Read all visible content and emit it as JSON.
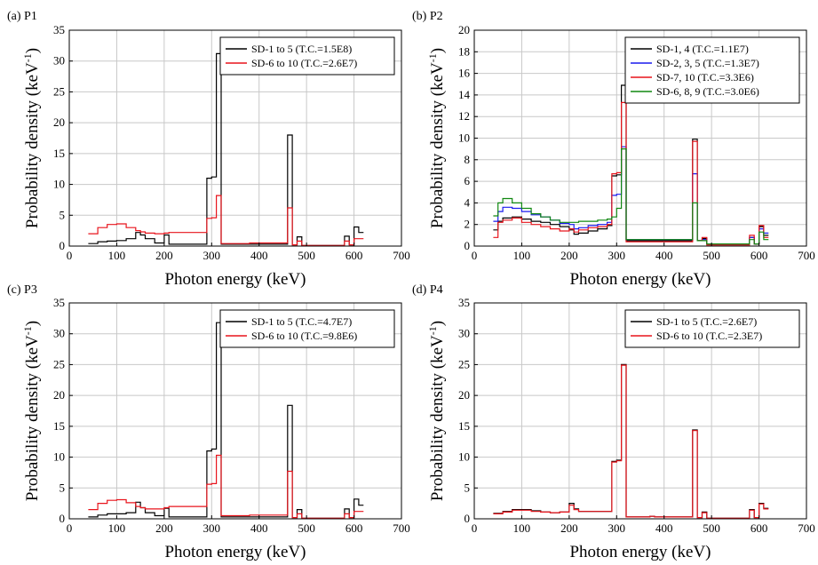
{
  "chart_data": [
    {
      "type": "line",
      "panel_label": "(a) P1",
      "xlabel": "Photon energy (keV)",
      "ylabel": "Probability density (keV",
      "ylabel_sup": "-1",
      "ylabel_end": ")",
      "xlim": [
        0,
        700
      ],
      "ylim": [
        0,
        35
      ],
      "xticks": [
        0,
        100,
        200,
        300,
        400,
        500,
        600,
        700
      ],
      "yticks": [
        0,
        5,
        10,
        15,
        20,
        25,
        30,
        35
      ],
      "grid": true,
      "legend_position": "top-right",
      "x": [
        40,
        60,
        80,
        100,
        120,
        140,
        150,
        160,
        180,
        200,
        210,
        290,
        300,
        310,
        320,
        370,
        380,
        460,
        470,
        480,
        490,
        580,
        590,
        600,
        610,
        620
      ],
      "series": [
        {
          "name": "SD-1 to 5  (T.C.=1.5E8)",
          "color": "#000000",
          "values": [
            0.4,
            0.7,
            0.8,
            0.9,
            1.2,
            2.2,
            1.8,
            1.2,
            0.5,
            1.8,
            0.3,
            11.0,
            11.2,
            31.2,
            0.3,
            0.3,
            0.3,
            18.0,
            0.2,
            1.5,
            0.1,
            1.6,
            0.2,
            3.1,
            2.2,
            2.2
          ]
        },
        {
          "name": "SD-6 to 10  (T.C.=2.6E7)",
          "color": "#e8141c",
          "values": [
            2.0,
            3.0,
            3.5,
            3.6,
            3.0,
            2.5,
            2.3,
            2.1,
            2.0,
            2.1,
            2.2,
            4.5,
            4.6,
            8.2,
            0.4,
            0.4,
            0.5,
            6.2,
            0.2,
            0.8,
            0.1,
            0.8,
            0.2,
            1.2,
            1.2,
            1.2
          ]
        }
      ]
    },
    {
      "type": "line",
      "panel_label": "(b) P2",
      "xlabel": "Photon energy (keV)",
      "ylabel": "Probability density (keV",
      "ylabel_sup": "-1",
      "ylabel_end": ")",
      "xlim": [
        0,
        700
      ],
      "ylim": [
        0,
        20
      ],
      "xticks": [
        0,
        100,
        200,
        300,
        400,
        500,
        600,
        700
      ],
      "yticks": [
        0,
        2,
        4,
        6,
        8,
        10,
        12,
        14,
        16,
        18,
        20
      ],
      "grid": true,
      "legend_position": "top-right",
      "x": [
        40,
        50,
        60,
        80,
        100,
        120,
        140,
        160,
        180,
        200,
        210,
        220,
        240,
        260,
        280,
        290,
        300,
        310,
        320,
        370,
        380,
        460,
        470,
        480,
        490,
        580,
        590,
        600,
        610,
        620
      ],
      "series": [
        {
          "name": "SD-1, 4  (T.C.=1.1E7)",
          "color": "#000000",
          "values": [
            1.5,
            2.3,
            2.6,
            2.7,
            2.5,
            2.3,
            2.2,
            2.0,
            1.8,
            1.5,
            1.1,
            1.2,
            1.4,
            1.6,
            1.9,
            6.5,
            6.6,
            14.9,
            0.5,
            0.5,
            0.5,
            9.9,
            0.5,
            0.7,
            0.2,
            0.8,
            0.2,
            1.8,
            1.0,
            1.0
          ]
        },
        {
          "name": "SD-2, 3, 5  (T.C.=1.3E7)",
          "color": "#1a1aee",
          "values": [
            2.3,
            3.2,
            3.6,
            3.5,
            3.2,
            2.9,
            2.7,
            2.4,
            2.1,
            2.0,
            1.6,
            1.7,
            1.9,
            2.0,
            2.2,
            4.7,
            4.8,
            9.2,
            0.6,
            0.6,
            0.6,
            6.7,
            0.5,
            0.6,
            0.2,
            0.8,
            0.2,
            1.6,
            1.2,
            1.2
          ]
        },
        {
          "name": "SD-7, 10  (T.C.=3.3E6)",
          "color": "#e8141c",
          "values": [
            0.8,
            2.2,
            2.4,
            2.6,
            2.2,
            2.0,
            1.8,
            1.6,
            1.4,
            1.6,
            1.3,
            1.5,
            1.7,
            1.8,
            2.0,
            6.7,
            6.8,
            13.3,
            0.4,
            0.4,
            0.4,
            9.7,
            0.5,
            0.8,
            0.1,
            1.0,
            0.2,
            1.9,
            0.8,
            0.8
          ]
        },
        {
          "name": "SD-6, 8, 9  (T.C.=3.0E6)",
          "color": "#118811",
          "values": [
            2.8,
            4.0,
            4.4,
            4.0,
            3.5,
            3.0,
            2.7,
            2.4,
            2.2,
            2.2,
            2.2,
            2.3,
            2.3,
            2.4,
            2.5,
            2.7,
            3.5,
            9.0,
            0.6,
            0.6,
            0.6,
            4.0,
            0.5,
            0.5,
            0.2,
            0.6,
            0.2,
            1.3,
            0.6,
            0.6
          ]
        }
      ]
    },
    {
      "type": "line",
      "panel_label": "(c) P3",
      "xlabel": "Photon energy (keV)",
      "ylabel": "Probability density (keV",
      "ylabel_sup": "-1",
      "ylabel_end": ")",
      "xlim": [
        0,
        700
      ],
      "ylim": [
        0,
        35
      ],
      "xticks": [
        0,
        100,
        200,
        300,
        400,
        500,
        600,
        700
      ],
      "yticks": [
        0,
        5,
        10,
        15,
        20,
        25,
        30,
        35
      ],
      "grid": true,
      "legend_position": "top-right",
      "x": [
        40,
        60,
        80,
        100,
        120,
        140,
        150,
        160,
        180,
        200,
        210,
        290,
        300,
        310,
        320,
        370,
        380,
        460,
        470,
        480,
        490,
        580,
        590,
        600,
        610,
        620
      ],
      "series": [
        {
          "name": "SD-1 to 5  (T.C.=4.7E7)",
          "color": "#000000",
          "values": [
            0.3,
            0.6,
            0.8,
            0.8,
            1.0,
            2.7,
            1.8,
            1.0,
            0.5,
            1.7,
            0.3,
            11.0,
            11.3,
            31.8,
            0.3,
            0.3,
            0.3,
            18.4,
            0.2,
            1.5,
            0.1,
            1.6,
            0.2,
            3.2,
            2.2,
            2.2
          ]
        },
        {
          "name": "SD-6 to 10  (T.C.=9.8E6)",
          "color": "#e8141c",
          "values": [
            1.5,
            2.5,
            3.0,
            3.1,
            2.6,
            2.0,
            1.8,
            1.6,
            1.6,
            1.8,
            2.0,
            5.6,
            5.7,
            10.3,
            0.5,
            0.5,
            0.6,
            7.7,
            0.2,
            0.8,
            0.1,
            0.8,
            0.2,
            1.2,
            1.2,
            1.2
          ]
        }
      ]
    },
    {
      "type": "line",
      "panel_label": "(d) P4",
      "xlabel": "Photon energy (keV)",
      "ylabel": "Probability density (keV",
      "ylabel_sup": "-1",
      "ylabel_end": ")",
      "xlim": [
        0,
        700
      ],
      "ylim": [
        0,
        35
      ],
      "xticks": [
        0,
        100,
        200,
        300,
        400,
        500,
        600,
        700
      ],
      "yticks": [
        0,
        5,
        10,
        15,
        20,
        25,
        30,
        35
      ],
      "grid": true,
      "legend_position": "top-right",
      "x": [
        40,
        60,
        80,
        100,
        120,
        140,
        160,
        180,
        200,
        210,
        220,
        290,
        300,
        310,
        320,
        370,
        380,
        460,
        470,
        480,
        490,
        580,
        590,
        600,
        610,
        620
      ],
      "series": [
        {
          "name": "SD-1 to 5  (T.C.=2.6E7)",
          "color": "#000000",
          "values": [
            0.9,
            1.2,
            1.5,
            1.5,
            1.3,
            1.1,
            1.0,
            1.1,
            2.5,
            1.6,
            1.2,
            9.3,
            9.5,
            25.0,
            0.3,
            0.4,
            0.3,
            14.4,
            0.2,
            1.1,
            0.1,
            1.5,
            0.2,
            2.5,
            1.7,
            1.7
          ]
        },
        {
          "name": "SD-6 to 10  (T.C.=2.3E7)",
          "color": "#e8141c",
          "values": [
            0.8,
            1.1,
            1.4,
            1.4,
            1.2,
            1.1,
            1.0,
            1.1,
            2.2,
            1.5,
            1.2,
            9.2,
            9.4,
            24.9,
            0.3,
            0.4,
            0.3,
            14.3,
            0.2,
            1.0,
            0.1,
            1.4,
            0.2,
            2.4,
            1.6,
            1.6
          ]
        }
      ]
    }
  ]
}
